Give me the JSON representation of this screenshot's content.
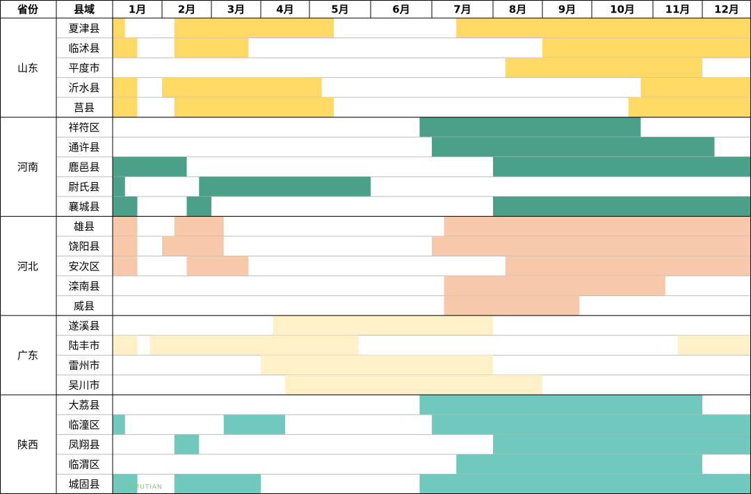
{
  "header": {
    "province": "省份",
    "county": "县域",
    "months": [
      "1月",
      "2月",
      "3月",
      "4月",
      "5月",
      "6月",
      "7月",
      "8月",
      "9月",
      "10月",
      "11月",
      "12月"
    ]
  },
  "provinces": [
    {
      "name": "山东",
      "color": "#ffd966",
      "counties": [
        {
          "name": "夏津县",
          "periods": [
            [
              0,
              0.25
            ],
            [
              1.25,
              4.4
            ],
            [
              6.4,
              12
            ]
          ]
        },
        {
          "name": "临沭县",
          "periods": [
            [
              0,
              0.5
            ],
            [
              1.25,
              2.75
            ],
            [
              8,
              12
            ]
          ]
        },
        {
          "name": "平度市",
          "periods": [
            [
              7.25,
              11
            ]
          ]
        },
        {
          "name": "沂水县",
          "periods": [
            [
              0,
              0.5
            ],
            [
              1,
              4.2
            ],
            [
              9.8,
              12
            ]
          ]
        },
        {
          "name": "莒县",
          "periods": [
            [
              0,
              0.5
            ],
            [
              1.25,
              4.4
            ],
            [
              9.6,
              12
            ]
          ]
        }
      ]
    },
    {
      "name": "河南",
      "color": "#4aa088",
      "counties": [
        {
          "name": "祥符区",
          "periods": [
            [
              5.8,
              9.8
            ]
          ]
        },
        {
          "name": "通许县",
          "periods": [
            [
              6,
              11.25
            ]
          ]
        },
        {
          "name": "鹿邑县",
          "periods": [
            [
              0,
              1.5
            ],
            [
              7,
              12
            ]
          ]
        },
        {
          "name": "尉氏县",
          "periods": [
            [
              0,
              0.25
            ],
            [
              1.75,
              5
            ]
          ]
        },
        {
          "name": "襄城县",
          "periods": [
            [
              0,
              0.5
            ],
            [
              1.5,
              2
            ],
            [
              7,
              12
            ]
          ]
        }
      ]
    },
    {
      "name": "河北",
      "color": "#f7c9aa",
      "counties": [
        {
          "name": "雄县",
          "periods": [
            [
              0,
              0.5
            ],
            [
              1.25,
              2.25
            ],
            [
              6.2,
              12
            ]
          ]
        },
        {
          "name": "饶阳县",
          "periods": [
            [
              0,
              0.5
            ],
            [
              1,
              2.25
            ],
            [
              6,
              12
            ]
          ]
        },
        {
          "name": "安次区",
          "periods": [
            [
              0,
              0.5
            ],
            [
              1.5,
              2.75
            ],
            [
              7.25,
              12
            ]
          ]
        },
        {
          "name": "滦南县",
          "periods": [
            [
              6.2,
              10.25
            ]
          ]
        },
        {
          "name": "威县",
          "periods": [
            [
              6.2,
              8.75
            ]
          ]
        }
      ]
    },
    {
      "name": "广东",
      "color": "#fff0c8",
      "counties": [
        {
          "name": "遂溪县",
          "periods": [
            [
              3.25,
              7
            ]
          ]
        },
        {
          "name": "陆丰市",
          "periods": [
            [
              0,
              0.5
            ],
            [
              0.75,
              4.8
            ],
            [
              10.5,
              12
            ]
          ]
        },
        {
          "name": "雷州市",
          "periods": [
            [
              3,
              7
            ]
          ]
        },
        {
          "name": "吴川市",
          "periods": [
            [
              3.5,
              8
            ]
          ]
        }
      ]
    },
    {
      "name": "陕西",
      "color": "#70c9bc",
      "counties": [
        {
          "name": "大荔县",
          "periods": [
            [
              5.8,
              11
            ]
          ]
        },
        {
          "name": "临潼区",
          "periods": [
            [
              0,
              0.25
            ],
            [
              2.25,
              3.5
            ],
            [
              6,
              12
            ]
          ]
        },
        {
          "name": "凤翔县",
          "periods": [
            [
              1.25,
              1.75
            ],
            [
              7,
              12
            ]
          ]
        },
        {
          "name": "临渭区",
          "periods": [
            [
              6.4,
              11
            ]
          ]
        },
        {
          "name": "城固县",
          "periods": [
            [
              0,
              0.5
            ],
            [
              1.25,
              3
            ],
            [
              5.8,
              12
            ]
          ]
        }
      ]
    }
  ],
  "watermark": "YIMUTIAN"
}
